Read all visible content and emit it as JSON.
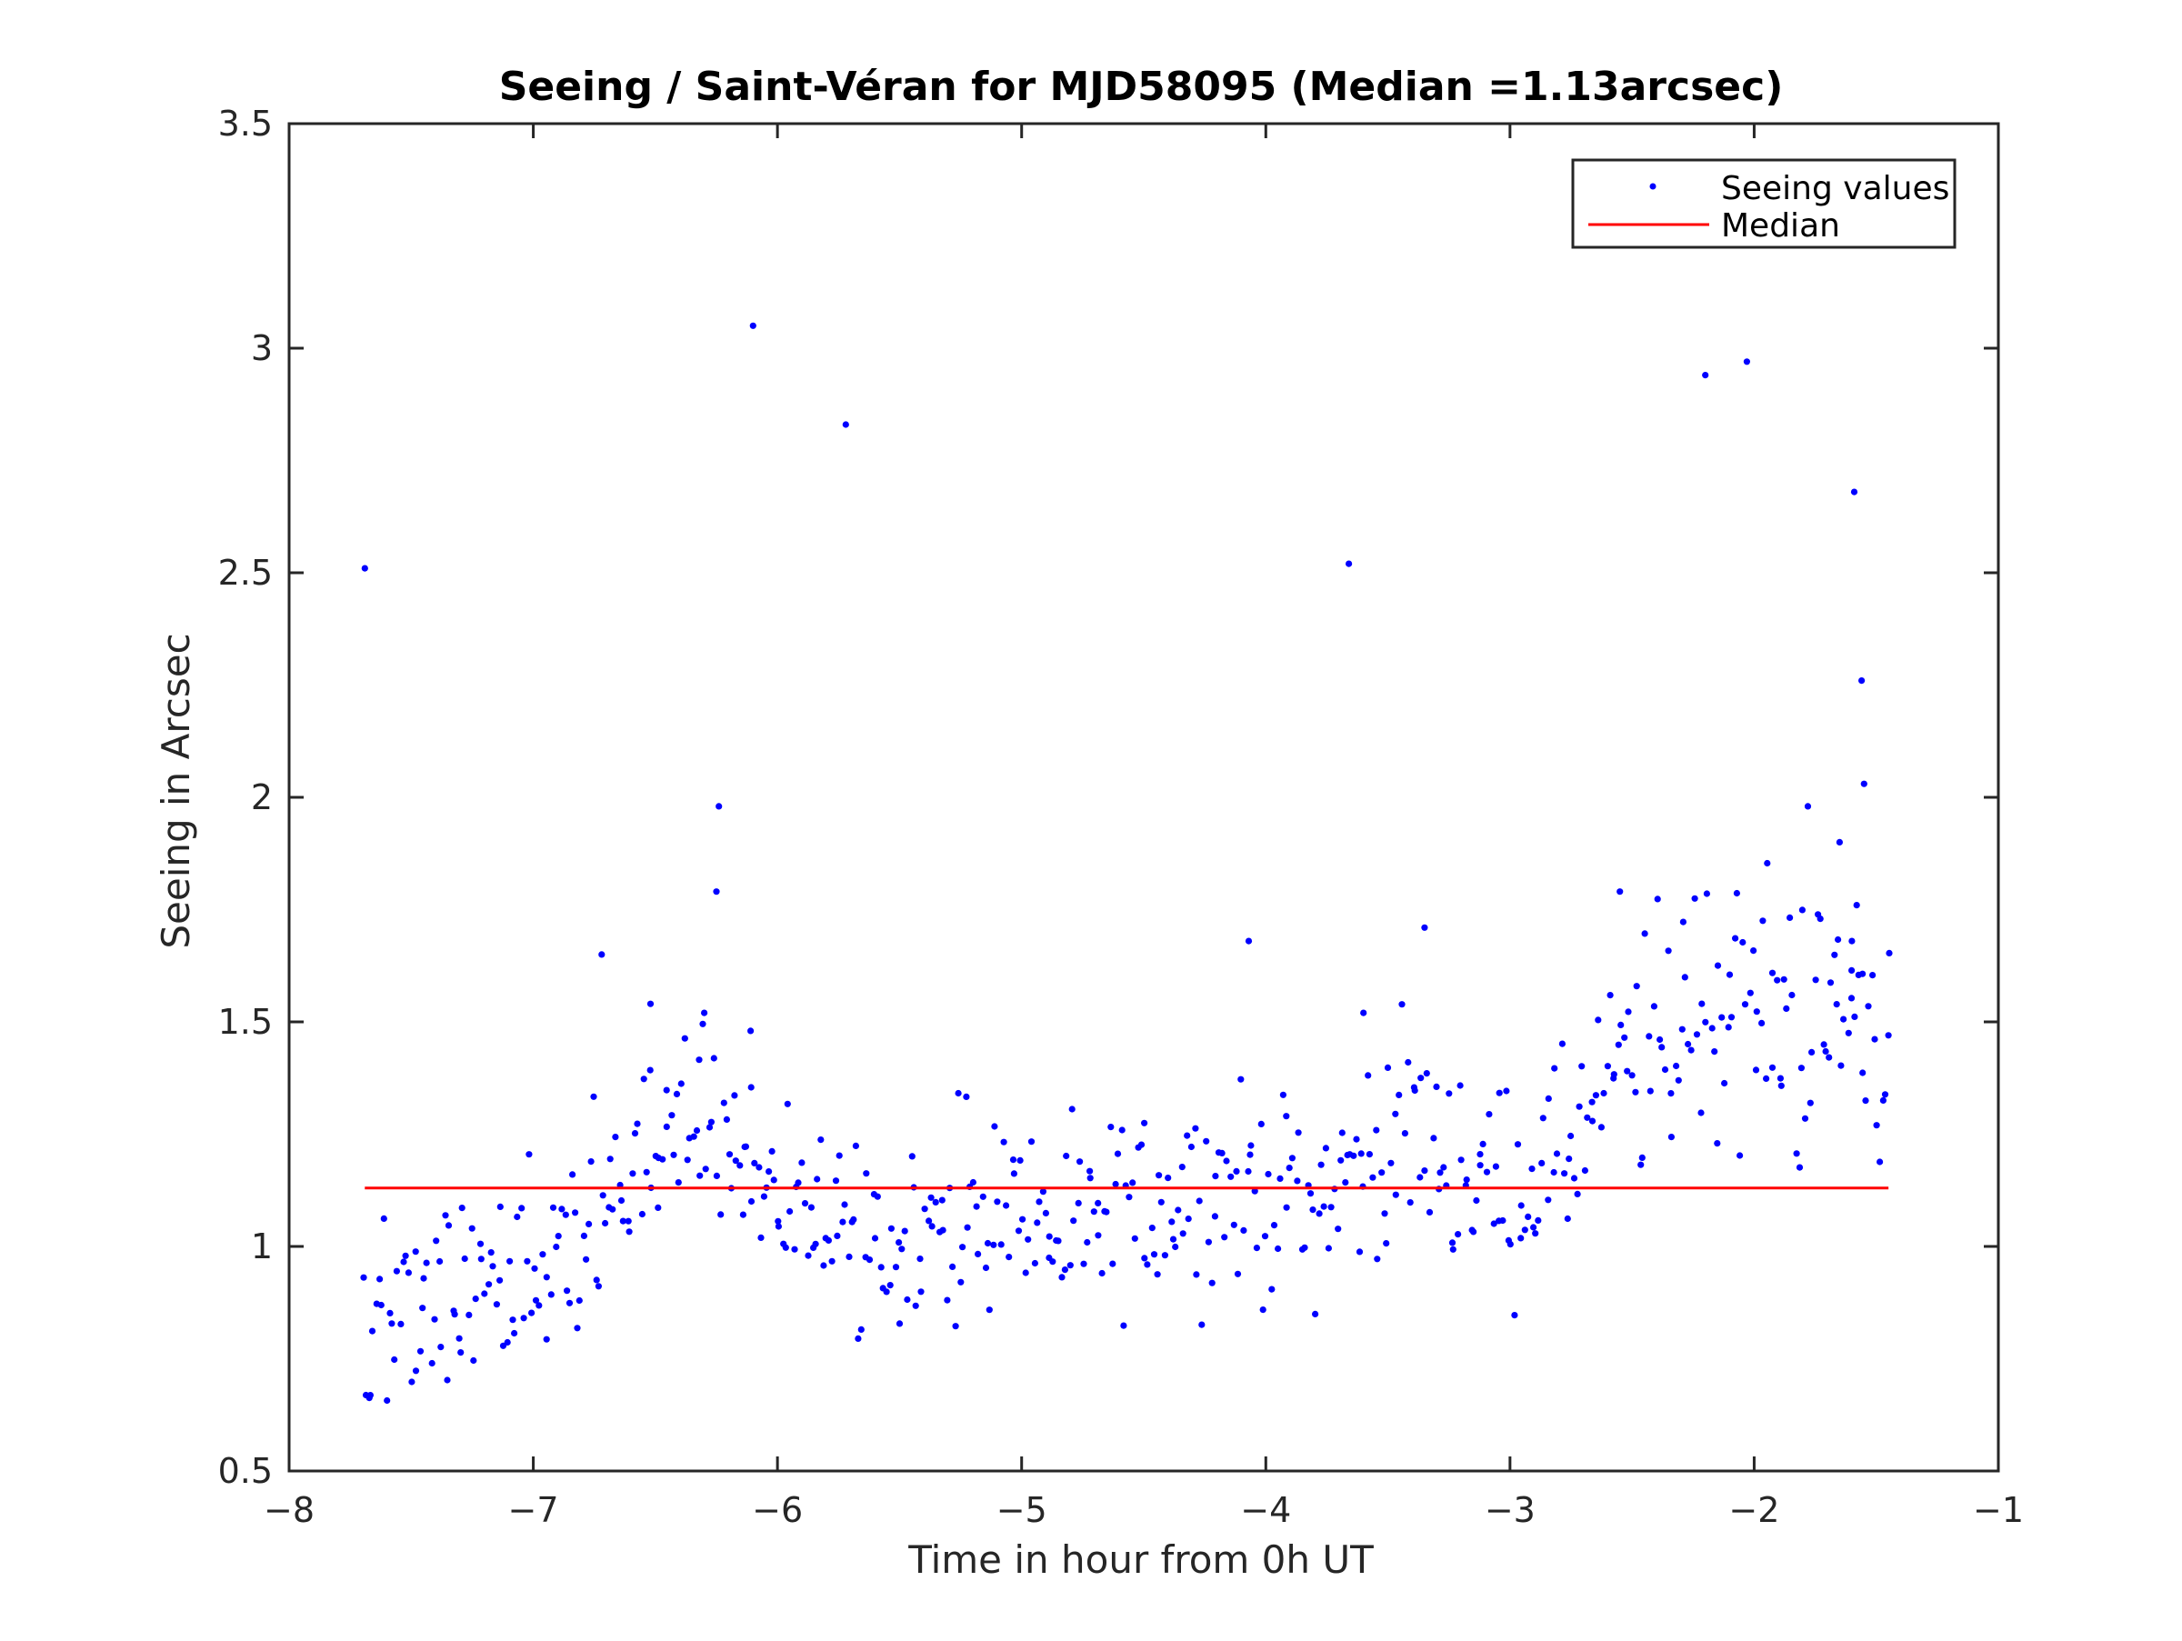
{
  "chart_data": {
    "type": "scatter",
    "title": "Seeing / Saint-Véran for MJD58095 (Median =1.13arcsec)",
    "xlabel": "Time in hour from 0h UT",
    "ylabel": "Seeing in Arcsec",
    "xlim": [
      -8,
      -1
    ],
    "ylim": [
      0.5,
      3.5
    ],
    "xticks": [
      -8,
      -7,
      -6,
      -5,
      -4,
      -3,
      -2,
      -1
    ],
    "xtick_labels": [
      "−8",
      "−7",
      "−6",
      "−5",
      "−4",
      "−3",
      "−2",
      "−1"
    ],
    "yticks": [
      0.5,
      1,
      1.5,
      2,
      2.5,
      3,
      3.5
    ],
    "ytick_labels": [
      "0.5",
      "1",
      "1.5",
      "2",
      "2.5",
      "3",
      "3.5"
    ],
    "grid": false,
    "legend_position": "top-right",
    "series": [
      {
        "name": "Seeing values",
        "color": "#0000ff",
        "marker": "dot",
        "outliers": [
          [
            -7.69,
            2.51
          ],
          [
            -6.24,
            1.98
          ],
          [
            -6.25,
            1.79
          ],
          [
            -6.1,
            3.05
          ],
          [
            -5.72,
            2.83
          ],
          [
            -6.72,
            1.65
          ],
          [
            -6.52,
            1.54
          ],
          [
            -6.3,
            1.52
          ],
          [
            -6.11,
            1.48
          ],
          [
            -4.07,
            1.68
          ],
          [
            -3.66,
            2.52
          ],
          [
            -3.6,
            1.52
          ],
          [
            -3.35,
            1.71
          ],
          [
            -2.55,
            1.79
          ],
          [
            -2.2,
            2.94
          ],
          [
            -2.03,
            2.97
          ],
          [
            -1.78,
            1.98
          ],
          [
            -1.59,
            2.68
          ],
          [
            -1.56,
            2.26
          ],
          [
            -1.55,
            2.03
          ],
          [
            -1.65,
            1.9
          ],
          [
            -1.45,
            1.47
          ],
          [
            -1.58,
            1.76
          ],
          [
            -1.6,
            1.68
          ]
        ],
        "trend": [
          [
            -7.7,
            0.82
          ],
          [
            -7.5,
            0.88
          ],
          [
            -7.3,
            0.93
          ],
          [
            -7.1,
            0.93
          ],
          [
            -6.9,
            0.95
          ],
          [
            -6.7,
            1.08
          ],
          [
            -6.5,
            1.2
          ],
          [
            -6.35,
            1.3
          ],
          [
            -6.2,
            1.22
          ],
          [
            -6.0,
            1.13
          ],
          [
            -5.8,
            1.07
          ],
          [
            -5.6,
            1.03
          ],
          [
            -5.4,
            1.02
          ],
          [
            -5.2,
            1.06
          ],
          [
            -5.0,
            1.08
          ],
          [
            -4.8,
            1.0
          ],
          [
            -4.6,
            1.06
          ],
          [
            -4.4,
            1.12
          ],
          [
            -4.2,
            1.12
          ],
          [
            -4.0,
            1.12
          ],
          [
            -3.8,
            1.1
          ],
          [
            -3.6,
            1.18
          ],
          [
            -3.4,
            1.27
          ],
          [
            -3.2,
            1.17
          ],
          [
            -3.0,
            1.12
          ],
          [
            -2.8,
            1.18
          ],
          [
            -2.6,
            1.35
          ],
          [
            -2.4,
            1.45
          ],
          [
            -2.2,
            1.56
          ],
          [
            -2.0,
            1.53
          ],
          [
            -1.8,
            1.5
          ],
          [
            -1.6,
            1.52
          ],
          [
            -1.45,
            1.47
          ]
        ],
        "bulk_count": 560,
        "bulk_x_range": [
          -7.7,
          -1.45
        ],
        "bulk_spread": 0.11
      },
      {
        "name": "Median",
        "color": "#ff0000",
        "type": "hline",
        "y": 1.13,
        "x_range": [
          -7.69,
          -1.45
        ]
      }
    ]
  }
}
